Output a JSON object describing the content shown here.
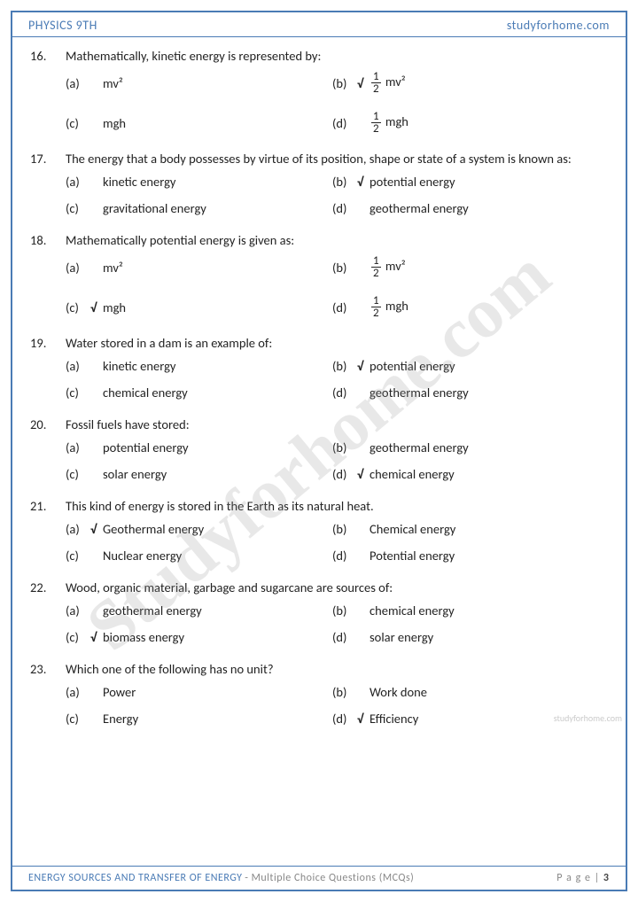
{
  "header": {
    "left": "PHYSICS 9TH",
    "right": "studyforhome.com"
  },
  "footer": {
    "topic": "ENERGY SOURCES AND TRANSFER OF ENERGY",
    "subtitle": "- Multiple Choice Questions (MCQs)",
    "page_label": "P a g e |",
    "page_num": "3"
  },
  "watermark": "Studyforhome.com",
  "side_watermark": "studyforhome.com",
  "questions": [
    {
      "num": "16.",
      "text": "Mathematically, kinetic energy is represented by:",
      "opts": [
        {
          "l": "(a)",
          "t": "mv²",
          "c": false,
          "f": false
        },
        {
          "l": "(b)",
          "t": "mv²",
          "c": true,
          "f": true
        },
        {
          "l": "(c)",
          "t": "mgh",
          "c": false,
          "f": false
        },
        {
          "l": "(d)",
          "t": "mgh",
          "c": false,
          "f": true
        }
      ],
      "tall": true
    },
    {
      "num": "17.",
      "text": "The energy that a body possesses by virtue of its position, shape or state of a system is known as:",
      "opts": [
        {
          "l": "(a)",
          "t": "kinetic energy",
          "c": false
        },
        {
          "l": "(b)",
          "t": "potential energy",
          "c": true
        },
        {
          "l": "(c)",
          "t": "gravitational energy",
          "c": false
        },
        {
          "l": "(d)",
          "t": "geothermal energy",
          "c": false
        }
      ]
    },
    {
      "num": "18.",
      "text": "Mathematically potential energy is given as:",
      "opts": [
        {
          "l": "(a)",
          "t": "mv²",
          "c": false,
          "f": false
        },
        {
          "l": "(b)",
          "t": "mv²",
          "c": false,
          "f": true
        },
        {
          "l": "(c)",
          "t": "mgh",
          "c": true,
          "f": false
        },
        {
          "l": "(d)",
          "t": "mgh",
          "c": false,
          "f": true
        }
      ],
      "tall": true
    },
    {
      "num": "19.",
      "text": "Water stored in a dam is an example of:",
      "opts": [
        {
          "l": "(a)",
          "t": "kinetic energy",
          "c": false
        },
        {
          "l": "(b)",
          "t": "potential energy",
          "c": true
        },
        {
          "l": "(c)",
          "t": "chemical energy",
          "c": false
        },
        {
          "l": "(d)",
          "t": "geothermal energy",
          "c": false
        }
      ]
    },
    {
      "num": "20.",
      "text": "Fossil fuels have stored:",
      "opts": [
        {
          "l": "(a)",
          "t": "potential energy",
          "c": false
        },
        {
          "l": "(b)",
          "t": "geothermal energy",
          "c": false
        },
        {
          "l": "(c)",
          "t": "solar energy",
          "c": false
        },
        {
          "l": "(d)",
          "t": "chemical energy",
          "c": true
        }
      ]
    },
    {
      "num": "21.",
      "text": "This kind of energy is stored in the Earth as its natural heat.",
      "opts": [
        {
          "l": "(a)",
          "t": "Geothermal energy",
          "c": true
        },
        {
          "l": "(b)",
          "t": "Chemical energy",
          "c": false
        },
        {
          "l": "(c)",
          "t": "Nuclear energy",
          "c": false
        },
        {
          "l": "(d)",
          "t": "Potential energy",
          "c": false
        }
      ]
    },
    {
      "num": "22.",
      "text": "Wood, organic material, garbage and sugarcane are sources of:",
      "opts": [
        {
          "l": "(a)",
          "t": "geothermal energy",
          "c": false
        },
        {
          "l": "(b)",
          "t": "chemical energy",
          "c": false
        },
        {
          "l": "(c)",
          "t": "biomass energy",
          "c": true
        },
        {
          "l": "(d)",
          "t": "solar energy",
          "c": false
        }
      ]
    },
    {
      "num": "23.",
      "text": "Which one of the following has no unit?",
      "opts": [
        {
          "l": "(a)",
          "t": "Power",
          "c": false
        },
        {
          "l": "(b)",
          "t": "Work done",
          "c": false
        },
        {
          "l": "(c)",
          "t": "Energy",
          "c": false
        },
        {
          "l": "(d)",
          "t": "Efficiency",
          "c": true
        }
      ]
    }
  ]
}
